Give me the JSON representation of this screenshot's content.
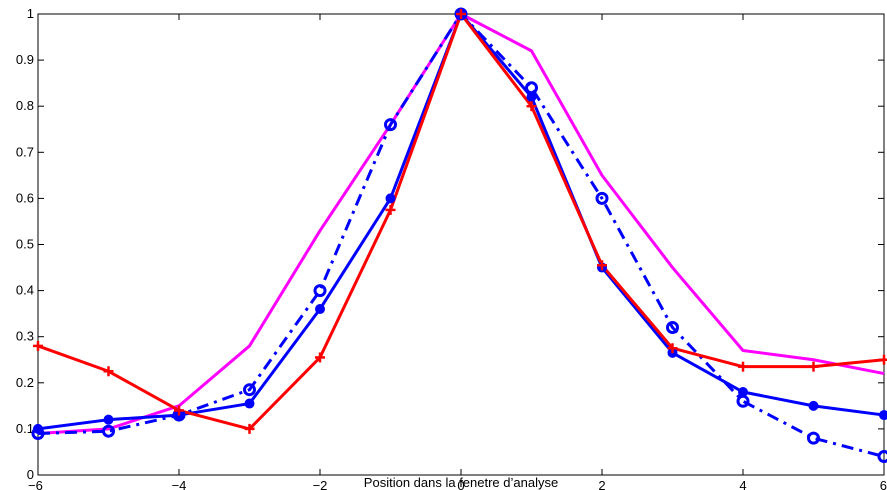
{
  "chart_data": {
    "type": "line",
    "title": "",
    "xlabel": "Position dans la fenetre d’analyse",
    "ylabel": "",
    "xlim": [
      -6,
      6
    ],
    "ylim": [
      0,
      1
    ],
    "x_ticks": [
      -6,
      -4,
      -2,
      0,
      2,
      4,
      6
    ],
    "x_tick_labels": [
      "−6",
      "−4",
      "−2",
      "0",
      "2",
      "4",
      "6"
    ],
    "y_ticks": [
      0,
      0.1,
      0.2,
      0.3,
      0.4,
      0.5,
      0.6,
      0.7,
      0.8,
      0.9,
      1
    ],
    "y_tick_labels": [
      "0",
      "0.1",
      "0.2",
      "0.3",
      "0.4",
      "0.5",
      "0.6",
      "0.7",
      "0.8",
      "0.9",
      "1"
    ],
    "grid": false,
    "legend": "none",
    "x": [
      -6,
      -5,
      -4,
      -3,
      -2,
      -1,
      0,
      1,
      2,
      3,
      4,
      5,
      6
    ],
    "series": [
      {
        "color": "#ff00ff",
        "line_style": "solid",
        "marker": "none",
        "values": [
          0.09,
          0.1,
          0.15,
          0.28,
          0.53,
          0.76,
          1.0,
          0.92,
          0.65,
          0.45,
          0.27,
          0.25,
          0.22
        ]
      },
      {
        "color": "#0000ff",
        "line_style": "solid",
        "marker": "dot",
        "values": [
          0.1,
          0.12,
          0.13,
          0.155,
          0.36,
          0.6,
          1.0,
          0.82,
          0.45,
          0.265,
          0.18,
          0.15,
          0.13
        ]
      },
      {
        "color": "#0000ff",
        "line_style": "dashdot",
        "marker": "circle",
        "values": [
          0.09,
          0.095,
          0.13,
          0.185,
          0.4,
          0.76,
          1.0,
          0.84,
          0.6,
          0.32,
          0.16,
          0.08,
          0.04
        ]
      },
      {
        "color": "#ff0000",
        "line_style": "solid",
        "marker": "plus",
        "values": [
          0.28,
          0.225,
          0.14,
          0.1,
          0.255,
          0.575,
          1.0,
          0.8,
          0.455,
          0.275,
          0.235,
          0.235,
          0.25
        ]
      }
    ]
  }
}
